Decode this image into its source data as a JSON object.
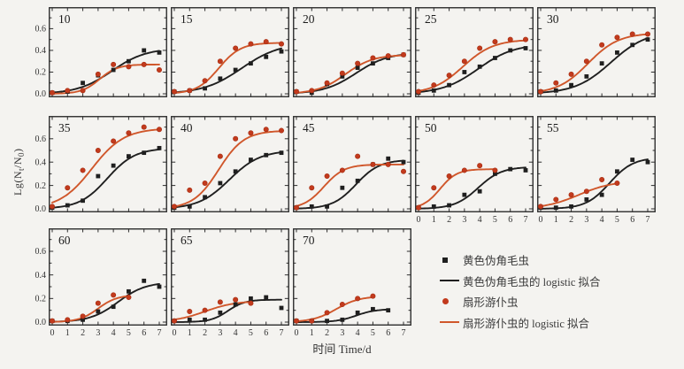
{
  "figure": {
    "type_note": "grid of 13 logistic-growth small-multiple panels"
  },
  "legend": {
    "position": "bottom-right",
    "items": [
      {
        "label": "黄色伪角毛虫",
        "glyph": "black-square-icon"
      },
      {
        "label": "黄色伪角毛虫的 logistic 拟合",
        "glyph": "black-line-icon"
      },
      {
        "label": "扇形游仆虫",
        "glyph": "orange-circle-icon"
      },
      {
        "label": "扇形游仆虫的 logistic 拟合",
        "glyph": "orange-line-icon"
      }
    ]
  },
  "chart_data": {
    "type": "line",
    "layout": "3 rows x 5 cols small multiples; row3 has 3 panels",
    "xlabel": "时间 Time/d",
    "ylabel": "Lg(Nt/N0)",
    "ylabel_parts": {
      "p1": "Lg(N",
      "s1": "t",
      "p2": "/N",
      "s2": "0",
      "p3": ")"
    },
    "x": [
      0,
      1,
      2,
      3,
      4,
      5,
      6,
      7
    ],
    "xticks": [
      0,
      1,
      2,
      3,
      4,
      5,
      6,
      7
    ],
    "yticks": [
      0.0,
      0.2,
      0.4,
      0.6
    ],
    "ylim": [
      0,
      0.75
    ],
    "grid": false,
    "colors": {
      "black_series": "#1f1f1f",
      "orange_line": "#d0572b",
      "orange_marker": "#c23a1d",
      "background": "#f4f3f0",
      "panel_border": "#2e2e2e"
    },
    "series_meta": [
      {
        "name": "黄色伪角毛虫",
        "style": "black square markers"
      },
      {
        "name": "黄色伪角毛虫的 logistic 拟合",
        "style": "black curve"
      },
      {
        "name": "扇形游仆虫",
        "style": "orange circle markers"
      },
      {
        "name": "扇形游仆虫的 logistic 拟合",
        "style": "orange curve"
      }
    ],
    "fit_note": "fit params are [L, k, x0] for y = L/(1+exp(-k*(x-x0)))",
    "panels": [
      {
        "label": "10",
        "row": 0,
        "col": 0,
        "show_y": true,
        "show_x": false,
        "black": [
          0.01,
          0.02,
          0.1,
          0.17,
          0.22,
          0.3,
          0.4,
          0.38
        ],
        "black_fit": [
          0.42,
          0.9,
          3.9
        ],
        "orange": [
          0.01,
          0.03,
          0.03,
          0.18,
          0.27,
          0.25,
          0.27,
          0.22
        ],
        "orange_fit": [
          0.27,
          1.7,
          3.1
        ]
      },
      {
        "label": "15",
        "row": 0,
        "col": 1,
        "show_y": false,
        "show_x": false,
        "black": [
          0.02,
          0.03,
          0.05,
          0.14,
          0.22,
          0.28,
          0.34,
          0.39
        ],
        "black_fit": [
          0.47,
          0.8,
          4.4
        ],
        "orange": [
          0.02,
          0.03,
          0.12,
          0.3,
          0.42,
          0.46,
          0.48,
          0.46
        ],
        "orange_fit": [
          0.47,
          1.4,
          2.9
        ]
      },
      {
        "label": "20",
        "row": 0,
        "col": 2,
        "show_y": false,
        "show_x": false,
        "black": [
          0.02,
          0.01,
          0.09,
          0.16,
          0.24,
          0.28,
          0.33,
          0.36
        ],
        "black_fit": [
          0.38,
          0.95,
          3.9
        ],
        "orange": [
          0.02,
          0.03,
          0.1,
          0.19,
          0.28,
          0.33,
          0.35,
          0.36
        ],
        "orange_fit": [
          0.36,
          1.1,
          3.2
        ]
      },
      {
        "label": "25",
        "row": 0,
        "col": 3,
        "show_y": false,
        "show_x": false,
        "black": [
          0.01,
          0.03,
          0.08,
          0.2,
          0.25,
          0.33,
          0.4,
          0.42
        ],
        "black_fit": [
          0.46,
          0.85,
          3.9
        ],
        "orange": [
          0.02,
          0.08,
          0.17,
          0.3,
          0.42,
          0.48,
          0.5,
          0.5
        ],
        "orange_fit": [
          0.5,
          1.0,
          2.9
        ]
      },
      {
        "label": "30",
        "row": 0,
        "col": 4,
        "show_y": false,
        "show_x": false,
        "black": [
          0.02,
          0.03,
          0.08,
          0.16,
          0.28,
          0.38,
          0.45,
          0.5
        ],
        "black_fit": [
          0.58,
          0.85,
          4.6
        ],
        "orange": [
          0.02,
          0.1,
          0.18,
          0.3,
          0.45,
          0.52,
          0.55,
          0.55
        ],
        "orange_fit": [
          0.56,
          1.0,
          3.1
        ]
      },
      {
        "label": "35",
        "row": 1,
        "col": 0,
        "show_y": true,
        "show_x": false,
        "black": [
          0.01,
          0.03,
          0.07,
          0.28,
          0.37,
          0.45,
          0.48,
          0.52
        ],
        "black_fit": [
          0.52,
          1.1,
          3.6
        ],
        "orange": [
          0.02,
          0.18,
          0.33,
          0.5,
          0.58,
          0.65,
          0.7,
          0.68
        ],
        "orange_fit": [
          0.69,
          0.95,
          2.6
        ]
      },
      {
        "label": "40",
        "row": 1,
        "col": 1,
        "show_y": false,
        "show_x": false,
        "black": [
          0.01,
          0.02,
          0.1,
          0.22,
          0.32,
          0.42,
          0.46,
          0.48
        ],
        "black_fit": [
          0.5,
          1.0,
          3.6
        ],
        "orange": [
          0.02,
          0.16,
          0.22,
          0.45,
          0.6,
          0.65,
          0.68,
          0.67
        ],
        "orange_fit": [
          0.67,
          1.2,
          2.9
        ]
      },
      {
        "label": "45",
        "row": 1,
        "col": 2,
        "show_y": false,
        "show_x": false,
        "black": [
          0.01,
          0.02,
          0.02,
          0.18,
          0.24,
          0.38,
          0.43,
          0.4
        ],
        "black_fit": [
          0.42,
          1.3,
          3.9
        ],
        "orange": [
          0.01,
          0.18,
          0.28,
          0.33,
          0.45,
          0.38,
          0.38,
          0.32
        ],
        "orange_fit": [
          0.38,
          1.5,
          1.8
        ]
      },
      {
        "label": "50",
        "row": 1,
        "col": 3,
        "show_y": false,
        "show_x": true,
        "black": [
          0.01,
          0.02,
          0.03,
          0.12,
          0.15,
          0.3,
          0.34,
          0.33
        ],
        "black_fit": [
          0.36,
          1.3,
          3.9
        ],
        "orange": [
          0.01,
          0.18,
          0.28,
          0.33,
          0.37,
          0.33
        ],
        "orange_fit": [
          0.34,
          1.8,
          1.4
        ],
        "orange_xmax": 5
      },
      {
        "label": "55",
        "row": 1,
        "col": 4,
        "show_y": false,
        "show_x": true,
        "black": [
          0.01,
          0.01,
          0.02,
          0.08,
          0.12,
          0.32,
          0.42,
          0.4
        ],
        "black_fit": [
          0.44,
          1.3,
          4.5
        ],
        "orange": [
          0.02,
          0.08,
          0.12,
          0.15,
          0.25,
          0.22
        ],
        "orange_fit": [
          0.24,
          0.9,
          2.5
        ],
        "orange_xmax": 5
      },
      {
        "label": "60",
        "row": 2,
        "col": 0,
        "show_y": true,
        "show_x": true,
        "black": [
          0.01,
          0.01,
          0.02,
          0.09,
          0.13,
          0.26,
          0.35,
          0.3
        ],
        "black_fit": [
          0.34,
          1.1,
          4.3
        ],
        "orange": [
          0.01,
          0.02,
          0.05,
          0.16,
          0.23,
          0.21
        ],
        "orange_fit": [
          0.23,
          1.6,
          3.0
        ],
        "orange_xmax": 5
      },
      {
        "label": "65",
        "row": 2,
        "col": 1,
        "show_y": false,
        "show_x": true,
        "black": [
          0.01,
          0.02,
          0.02,
          0.08,
          0.15,
          0.2,
          0.21,
          0.12
        ],
        "black_fit": [
          0.19,
          1.8,
          3.5
        ],
        "orange": [
          0.01,
          0.09,
          0.1,
          0.17,
          0.19,
          0.16
        ],
        "orange_fit": [
          0.18,
          1.0,
          2.0
        ],
        "orange_xmax": 5
      },
      {
        "label": "70",
        "row": 2,
        "col": 2,
        "show_y": false,
        "show_x": true,
        "black": [
          0.01,
          0.01,
          0.01,
          0.02,
          0.08,
          0.11,
          0.1
        ],
        "black_fit": [
          0.11,
          1.6,
          3.9
        ],
        "black_xmax": 6,
        "orange": [
          0.01,
          0.01,
          0.08,
          0.15,
          0.2,
          0.22
        ],
        "orange_fit": [
          0.22,
          1.3,
          2.6
        ],
        "orange_xmax": 5
      }
    ]
  }
}
